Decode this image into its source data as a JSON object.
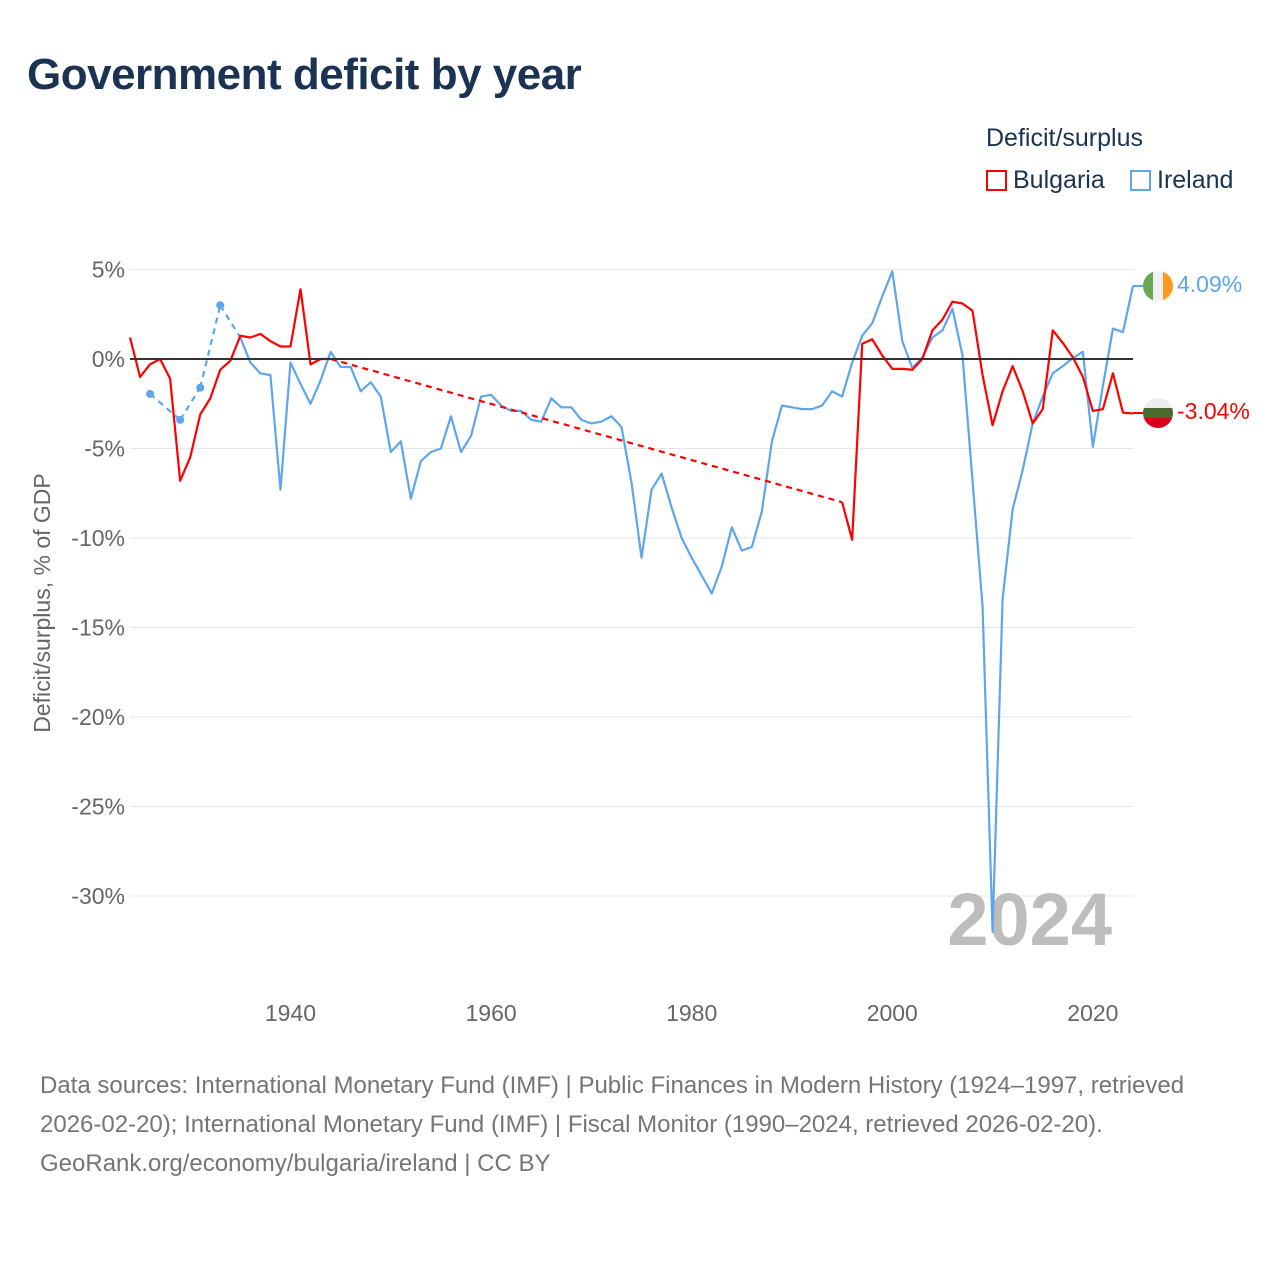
{
  "title": "Government deficit by year",
  "legend": {
    "title": "Deficit/surplus",
    "items": [
      {
        "name": "Bulgaria",
        "color": "#ff0000"
      },
      {
        "name": "Ireland",
        "color": "#5ea6ec"
      }
    ]
  },
  "watermark_year": "2024",
  "footer": {
    "sources": "Data sources: International Monetary Fund (IMF) | Public Finances in Modern History (1924–1997, retrieved 2026-02-20); International Monetary Fund (IMF) | Fiscal Monitor (1990–2024, retrieved 2026-02-20).",
    "credit": "GeoRank.org/economy/bulgaria/ireland | CC BY"
  },
  "chart_data": {
    "type": "line",
    "title": "Government deficit by year",
    "xlabel": "",
    "ylabel": "Deficit/surplus, % of GDP",
    "xlim": [
      1924,
      2024
    ],
    "ylim": [
      -33,
      5.5
    ],
    "xticks": [
      1940,
      1960,
      1980,
      2000,
      2020
    ],
    "yticks": [
      5,
      0,
      -5,
      -10,
      -15,
      -20,
      -25,
      -30
    ],
    "ytick_labels": [
      "5%",
      "0%",
      "-5%",
      "-10%",
      "-15%",
      "-20%",
      "-25%",
      "-30%"
    ],
    "grid": true,
    "legend_position": "top-right",
    "end_labels": {
      "Ireland": "4.09%",
      "Bulgaria": "-3.04%"
    },
    "series": [
      {
        "name": "Bulgaria",
        "color": "#ff0000",
        "points": [
          [
            1924,
            1.2
          ],
          [
            1925,
            -1.0
          ],
          [
            1926,
            -0.3
          ],
          [
            1927,
            0.0
          ],
          [
            1928,
            -1.1
          ],
          [
            1929,
            -6.8
          ],
          [
            1930,
            -5.5
          ],
          [
            1931,
            -3.1
          ],
          [
            1932,
            -2.2
          ],
          [
            1933,
            -0.6
          ],
          [
            1934,
            -0.1
          ],
          [
            1935,
            1.3
          ],
          [
            1936,
            1.2
          ],
          [
            1937,
            1.4
          ],
          [
            1938,
            1.0
          ],
          [
            1939,
            0.7
          ],
          [
            1940,
            0.7
          ],
          [
            1941,
            3.9
          ],
          [
            1942,
            -0.3
          ],
          [
            1943,
            0.0
          ],
          [
            1944,
            0.0
          ],
          [
            1995,
            -8.0
          ],
          [
            1996,
            -10.1
          ],
          [
            1997,
            0.85
          ],
          [
            1998,
            1.1
          ],
          [
            1999,
            0.2
          ],
          [
            2000,
            -0.55
          ],
          [
            2001,
            -0.55
          ],
          [
            2002,
            -0.6
          ],
          [
            2003,
            0.0
          ],
          [
            2004,
            1.6
          ],
          [
            2005,
            2.2
          ],
          [
            2006,
            3.2
          ],
          [
            2007,
            3.1
          ],
          [
            2008,
            2.7
          ],
          [
            2009,
            -0.9
          ],
          [
            2010,
            -3.7
          ],
          [
            2011,
            -1.8
          ],
          [
            2012,
            -0.4
          ],
          [
            2013,
            -1.8
          ],
          [
            2014,
            -3.6
          ],
          [
            2015,
            -2.8
          ],
          [
            2016,
            1.6
          ],
          [
            2017,
            0.9
          ],
          [
            2018,
            0.1
          ],
          [
            2019,
            -1.0
          ],
          [
            2020,
            -2.9
          ],
          [
            2021,
            -2.8
          ],
          [
            2022,
            -0.8
          ],
          [
            2023,
            -3.0
          ],
          [
            2024,
            -3.04
          ]
        ]
      },
      {
        "name": "Ireland",
        "color": "#5ea6ec",
        "points": [
          [
            1926,
            -1.95
          ],
          [
            1929,
            -3.4
          ],
          [
            1931,
            -1.6
          ],
          [
            1933,
            3.0
          ],
          [
            1935,
            1.2
          ],
          [
            1936,
            -0.2
          ],
          [
            1937,
            -0.8
          ],
          [
            1938,
            -0.9
          ],
          [
            1939,
            -7.3
          ],
          [
            1940,
            -0.2
          ],
          [
            1941,
            -1.4
          ],
          [
            1942,
            -2.5
          ],
          [
            1943,
            -1.2
          ],
          [
            1944,
            0.4
          ],
          [
            1945,
            -0.45
          ],
          [
            1946,
            -0.45
          ],
          [
            1947,
            -1.8
          ],
          [
            1948,
            -1.3
          ],
          [
            1949,
            -2.1
          ],
          [
            1950,
            -5.2
          ],
          [
            1951,
            -4.6
          ],
          [
            1952,
            -7.8
          ],
          [
            1953,
            -5.7
          ],
          [
            1954,
            -5.2
          ],
          [
            1955,
            -5.0
          ],
          [
            1956,
            -3.2
          ],
          [
            1957,
            -5.2
          ],
          [
            1958,
            -4.3
          ],
          [
            1959,
            -2.1
          ],
          [
            1960,
            -2.0
          ],
          [
            1961,
            -2.6
          ],
          [
            1962,
            -2.9
          ],
          [
            1963,
            -2.9
          ],
          [
            1964,
            -3.4
          ],
          [
            1965,
            -3.5
          ],
          [
            1966,
            -2.2
          ],
          [
            1967,
            -2.7
          ],
          [
            1968,
            -2.7
          ],
          [
            1969,
            -3.4
          ],
          [
            1970,
            -3.6
          ],
          [
            1971,
            -3.5
          ],
          [
            1972,
            -3.2
          ],
          [
            1973,
            -3.8
          ],
          [
            1974,
            -6.9
          ],
          [
            1975,
            -11.1
          ],
          [
            1976,
            -7.3
          ],
          [
            1977,
            -6.4
          ],
          [
            1978,
            -8.3
          ],
          [
            1979,
            -10.0
          ],
          [
            1980,
            -11.1
          ],
          [
            1981,
            -12.1
          ],
          [
            1982,
            -13.1
          ],
          [
            1983,
            -11.6
          ],
          [
            1984,
            -9.4
          ],
          [
            1985,
            -10.7
          ],
          [
            1986,
            -10.5
          ],
          [
            1987,
            -8.5
          ],
          [
            1988,
            -4.6
          ],
          [
            1989,
            -2.6
          ],
          [
            1990,
            -2.7
          ],
          [
            1991,
            -2.8
          ],
          [
            1992,
            -2.8
          ],
          [
            1993,
            -2.6
          ],
          [
            1994,
            -1.8
          ],
          [
            1995,
            -2.1
          ],
          [
            1996,
            -0.2
          ],
          [
            1997,
            1.3
          ],
          [
            1998,
            2.0
          ],
          [
            1999,
            3.5
          ],
          [
            2000,
            4.9
          ],
          [
            2001,
            1.0
          ],
          [
            2002,
            -0.5
          ],
          [
            2003,
            0.1
          ],
          [
            2004,
            1.2
          ],
          [
            2005,
            1.6
          ],
          [
            2006,
            2.8
          ],
          [
            2007,
            0.2
          ],
          [
            2008,
            -6.8
          ],
          [
            2009,
            -13.8
          ],
          [
            2010,
            -32.0
          ],
          [
            2011,
            -13.4
          ],
          [
            2012,
            -8.4
          ],
          [
            2013,
            -6.2
          ],
          [
            2014,
            -3.6
          ],
          [
            2015,
            -2.1
          ],
          [
            2016,
            -0.8
          ],
          [
            2017,
            -0.4
          ],
          [
            2018,
            0.05
          ],
          [
            2019,
            0.4
          ],
          [
            2020,
            -4.9
          ],
          [
            2021,
            -1.5
          ],
          [
            2022,
            1.7
          ],
          [
            2023,
            1.5
          ],
          [
            2024,
            4.09
          ]
        ]
      }
    ]
  }
}
